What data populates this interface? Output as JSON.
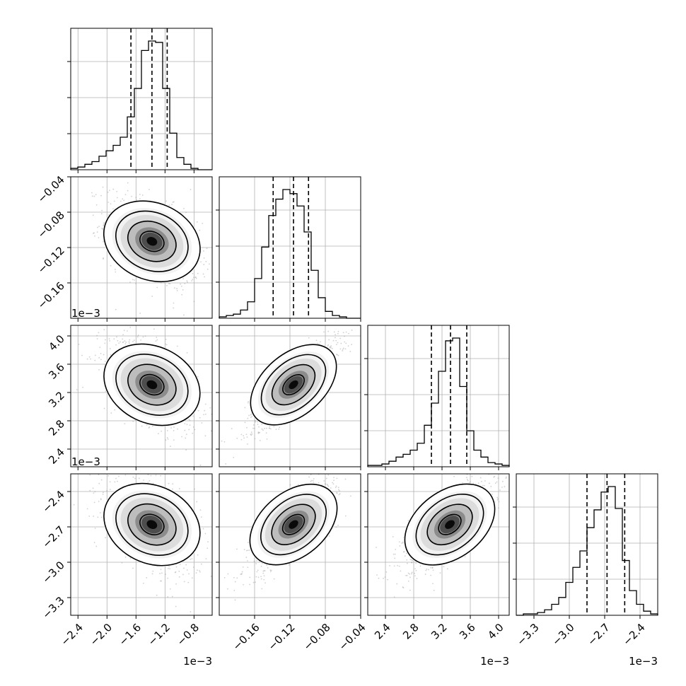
{
  "chart_data": {
    "type": "corner",
    "n_params": 4,
    "grid": true,
    "params": [
      {
        "range": [
          -2.5,
          -0.55
        ],
        "ticks": [
          -2.4,
          -2.0,
          -1.6,
          -1.2,
          -0.8
        ],
        "tick_labels": [
          "−2.4",
          "−2.0",
          "−1.6",
          "−1.2",
          "−0.8"
        ],
        "offset_label": "1e−3",
        "quantiles": [
          -1.67,
          -1.38,
          -1.17
        ],
        "hist": [
          1,
          2,
          4,
          6,
          10,
          14,
          18,
          24,
          39,
          60,
          88,
          95,
          94,
          60,
          27,
          9,
          4,
          1,
          0,
          0
        ]
      },
      {
        "range": [
          -0.2,
          -0.04
        ],
        "ticks": [
          -0.16,
          -0.12,
          -0.08,
          -0.04
        ],
        "tick_labels": [
          "−0.16",
          "−0.12",
          "−0.08",
          "−0.04"
        ],
        "y_tick_labels": [
          "−0.16",
          "−0.12",
          "−0.08",
          "−0.04"
        ],
        "offset_label": "1e−3",
        "quantiles": [
          -0.139,
          -0.116,
          -0.099
        ],
        "hist": [
          1,
          2,
          3,
          6,
          12,
          29,
          52,
          75,
          87,
          94,
          91,
          82,
          63,
          35,
          15,
          5,
          2,
          1,
          0,
          0
        ]
      },
      {
        "range": [
          2.15,
          4.15
        ],
        "ticks": [
          2.4,
          2.8,
          3.2,
          3.6,
          4.0
        ],
        "tick_labels": [
          "2.4",
          "2.8",
          "3.2",
          "3.6",
          "4.0"
        ],
        "offset_label": "1e−3",
        "quantiles": [
          3.05,
          3.32,
          3.55
        ],
        "hist": [
          1,
          1,
          2,
          4,
          7,
          9,
          12,
          17,
          30,
          46,
          69,
          91,
          93,
          58,
          26,
          12,
          7,
          3,
          2,
          1
        ]
      },
      {
        "range": [
          -3.45,
          -2.25
        ],
        "ticks": [
          -3.3,
          -3.0,
          -2.7,
          -2.4
        ],
        "tick_labels": [
          "−3.3",
          "−3.0",
          "−2.7",
          "−2.4"
        ],
        "offset_label": "1e−3",
        "quantiles": [
          -2.85,
          -2.68,
          -2.53
        ],
        "hist": [
          0,
          1,
          1,
          2,
          4,
          8,
          13,
          24,
          35,
          47,
          64,
          77,
          90,
          94,
          78,
          40,
          18,
          8,
          3,
          1
        ]
      }
    ],
    "pairs": [
      {
        "x_param": 0,
        "y_param": 1,
        "center": [
          -1.38,
          -0.113
        ],
        "sigma": [
          0.28,
          0.022
        ],
        "corr": -0.45
      },
      {
        "x_param": 0,
        "y_param": 2,
        "center": [
          -1.38,
          3.31
        ],
        "sigma": [
          0.28,
          0.28
        ],
        "corr": -0.5
      },
      {
        "x_param": 1,
        "y_param": 2,
        "center": [
          -0.116,
          3.31
        ],
        "sigma": [
          0.022,
          0.28
        ],
        "corr": 0.85
      },
      {
        "x_param": 0,
        "y_param": 3,
        "center": [
          -1.38,
          -2.68
        ],
        "sigma": [
          0.28,
          0.17
        ],
        "corr": -0.5
      },
      {
        "x_param": 1,
        "y_param": 3,
        "center": [
          -0.116,
          -2.68
        ],
        "sigma": [
          0.022,
          0.17
        ],
        "corr": 0.8
      },
      {
        "x_param": 2,
        "y_param": 3,
        "center": [
          3.31,
          -2.68
        ],
        "sigma": [
          0.28,
          0.17
        ],
        "corr": 0.75
      }
    ],
    "contour_levels": [
      0.5,
      1.0,
      1.5,
      2.0
    ]
  }
}
